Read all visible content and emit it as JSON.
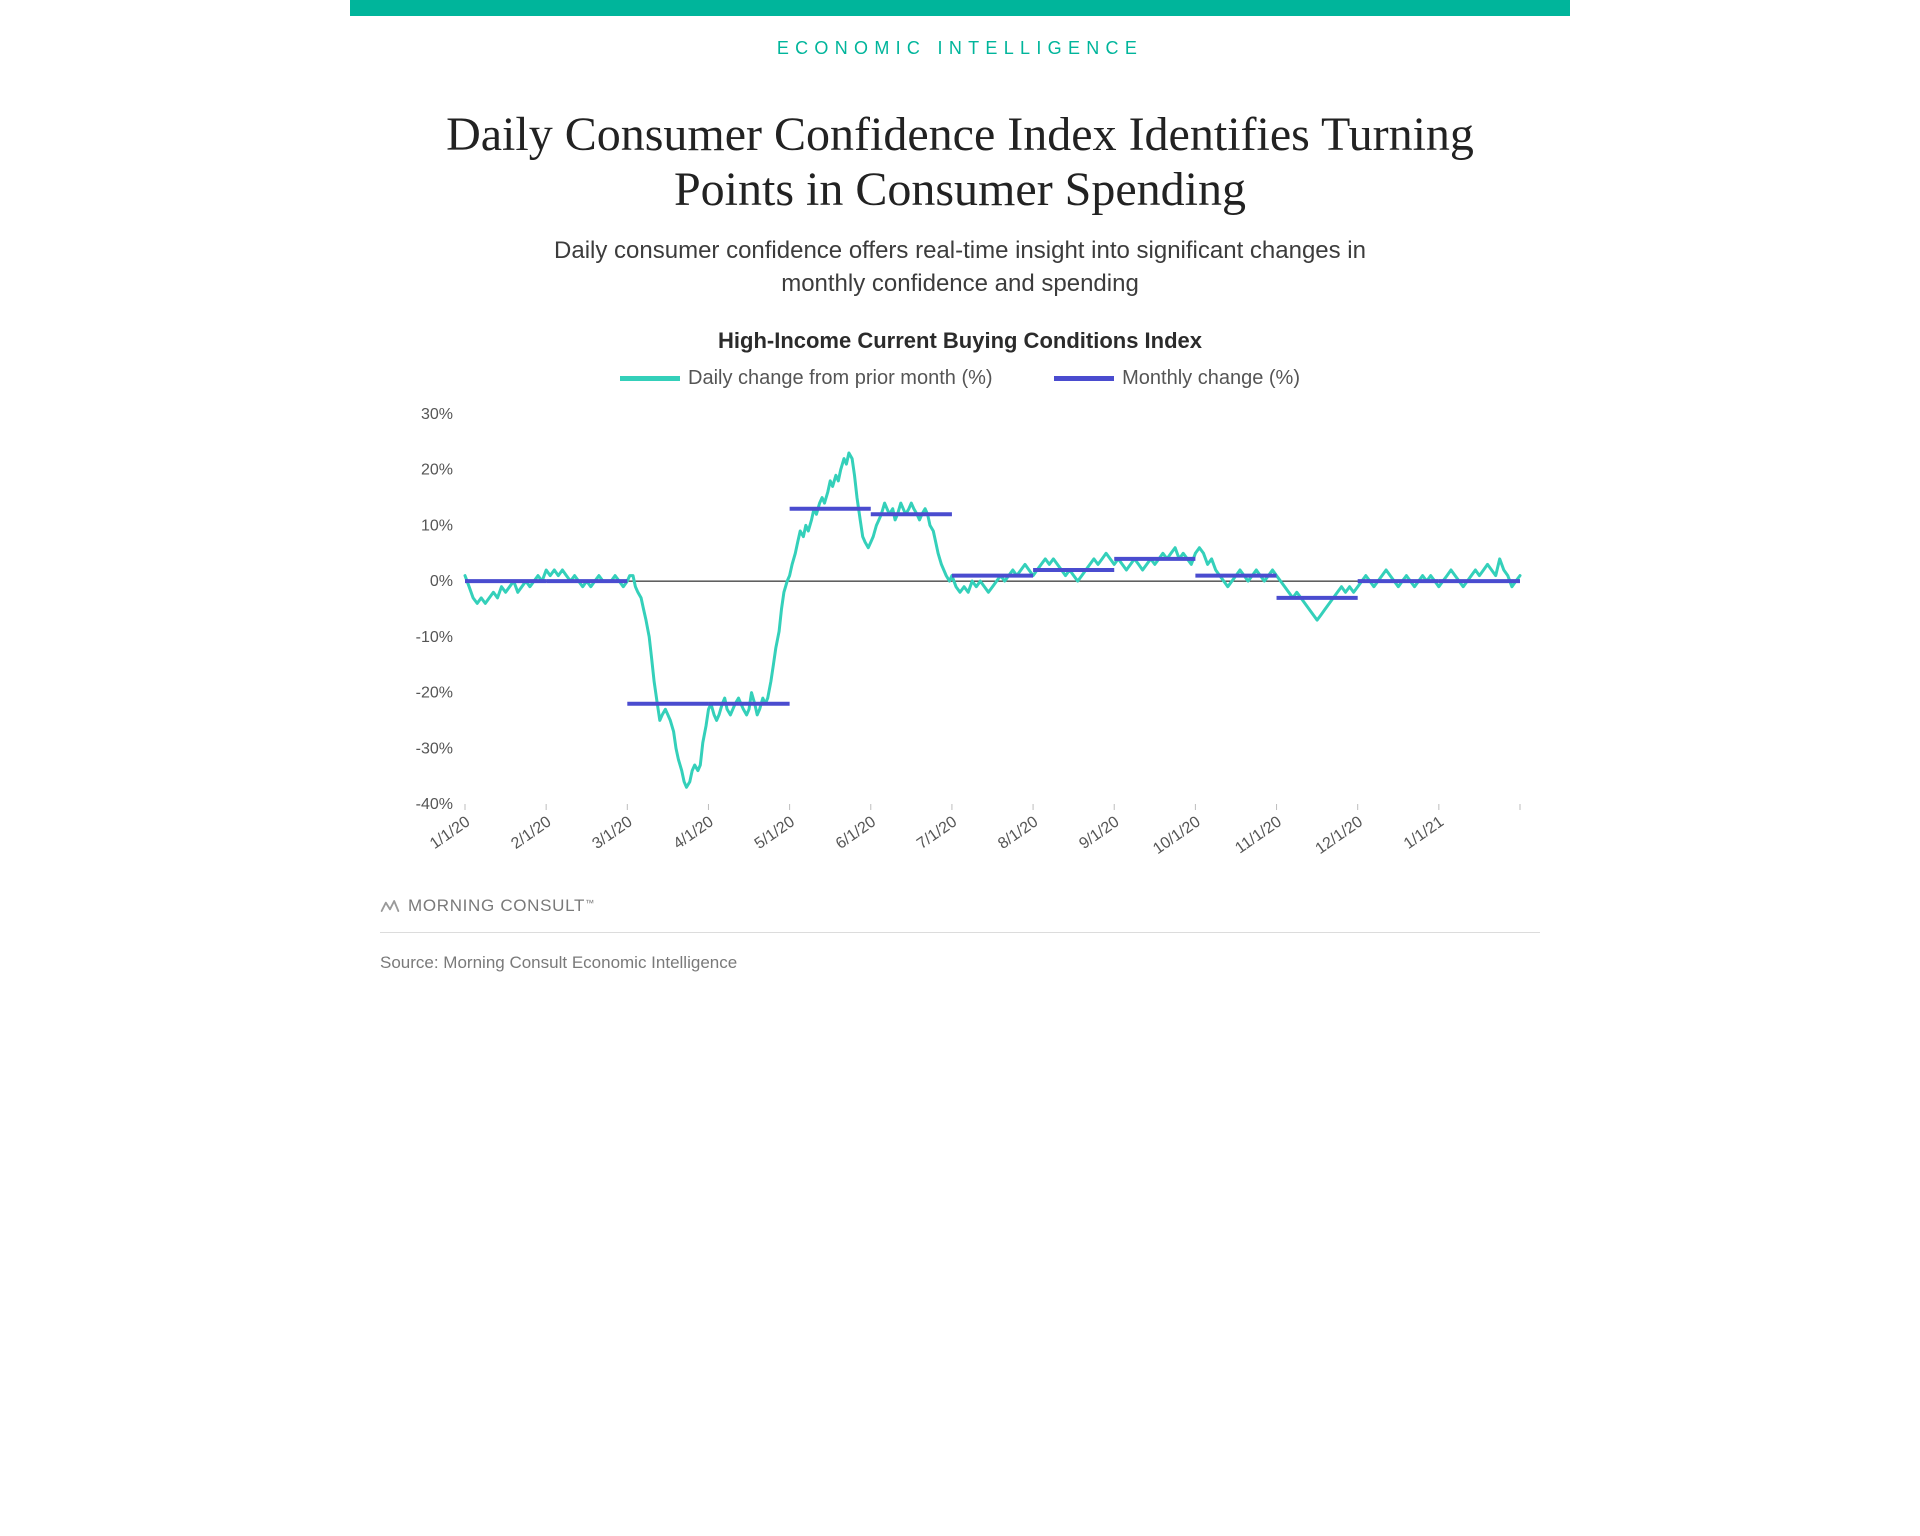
{
  "brand": {
    "accent": "#00b59b",
    "kicker": "ECONOMIC INTELLIGENCE",
    "logo_text": "MORNING CONSULT",
    "logo_color": "#9a9a9a",
    "source": "Source: Morning Consult Economic Intelligence"
  },
  "header": {
    "title": "Daily Consumer Confidence Index Identifies Turning Points in Consumer Spending",
    "subtitle": "Daily consumer confidence offers real-time insight into significant changes in monthly confidence and spending",
    "title_color": "#222222",
    "subtitle_color": "#3c3c3c"
  },
  "chart": {
    "title": "High-Income Current Buying Conditions Index",
    "legend": {
      "daily": {
        "label": "Daily change from prior month (%)",
        "color": "#34d0ba",
        "width": 3
      },
      "monthly": {
        "label": "Monthly change (%)",
        "color": "#4a4ccf",
        "width": 4
      }
    },
    "y": {
      "min": -40,
      "max": 30,
      "step": 10,
      "labels": [
        "30%",
        "20%",
        "10%",
        "0%",
        "-10%",
        "-20%",
        "-30%",
        "-40%"
      ],
      "label_color": "#555555",
      "axis_color": "#000000"
    },
    "x": {
      "labels": [
        "1/1/20",
        "2/1/20",
        "3/1/20",
        "4/1/20",
        "5/1/20",
        "6/1/20",
        "7/1/20",
        "8/1/20",
        "9/1/20",
        "10/1/20",
        "11/1/20",
        "12/1/20",
        "1/1/21"
      ],
      "count": 13,
      "tick_count": 14,
      "label_color": "#555555",
      "tick_color": "#bdbdbd"
    },
    "background": "#ffffff",
    "monthly_segments": [
      {
        "t0": 0.0,
        "t1": 1.0,
        "value": 0
      },
      {
        "t0": 1.0,
        "t1": 2.0,
        "value": 0
      },
      {
        "t0": 2.0,
        "t1": 3.0,
        "value": -22
      },
      {
        "t0": 3.0,
        "t1": 4.0,
        "value": -22
      },
      {
        "t0": 4.0,
        "t1": 5.0,
        "value": 13
      },
      {
        "t0": 5.0,
        "t1": 6.0,
        "value": 12
      },
      {
        "t0": 6.0,
        "t1": 7.0,
        "value": 1
      },
      {
        "t0": 7.0,
        "t1": 8.0,
        "value": 2
      },
      {
        "t0": 8.0,
        "t1": 9.0,
        "value": 4
      },
      {
        "t0": 9.0,
        "t1": 10.0,
        "value": 1
      },
      {
        "t0": 10.0,
        "t1": 11.0,
        "value": -3
      },
      {
        "t0": 11.0,
        "t1": 12.0,
        "value": 0
      },
      {
        "t0": 12.0,
        "t1": 13.0,
        "value": 0
      }
    ],
    "daily_series": [
      [
        0.0,
        1
      ],
      [
        0.05,
        -1
      ],
      [
        0.1,
        -3
      ],
      [
        0.15,
        -4
      ],
      [
        0.2,
        -3
      ],
      [
        0.25,
        -4
      ],
      [
        0.3,
        -3
      ],
      [
        0.35,
        -2
      ],
      [
        0.4,
        -3
      ],
      [
        0.45,
        -1
      ],
      [
        0.5,
        -2
      ],
      [
        0.55,
        -1
      ],
      [
        0.6,
        0
      ],
      [
        0.65,
        -2
      ],
      [
        0.7,
        -1
      ],
      [
        0.75,
        0
      ],
      [
        0.8,
        -1
      ],
      [
        0.85,
        0
      ],
      [
        0.9,
        1
      ],
      [
        0.95,
        0
      ],
      [
        1.0,
        2
      ],
      [
        1.05,
        1
      ],
      [
        1.1,
        2
      ],
      [
        1.15,
        1
      ],
      [
        1.2,
        2
      ],
      [
        1.25,
        1
      ],
      [
        1.3,
        0
      ],
      [
        1.35,
        1
      ],
      [
        1.4,
        0
      ],
      [
        1.45,
        -1
      ],
      [
        1.5,
        0
      ],
      [
        1.55,
        -1
      ],
      [
        1.6,
        0
      ],
      [
        1.65,
        1
      ],
      [
        1.7,
        0
      ],
      [
        1.75,
        0
      ],
      [
        1.8,
        0
      ],
      [
        1.85,
        1
      ],
      [
        1.9,
        0
      ],
      [
        1.95,
        -1
      ],
      [
        2.0,
        0
      ],
      [
        2.03,
        1
      ],
      [
        2.07,
        1
      ],
      [
        2.1,
        -1
      ],
      [
        2.13,
        -2
      ],
      [
        2.17,
        -3
      ],
      [
        2.2,
        -5
      ],
      [
        2.23,
        -7
      ],
      [
        2.27,
        -10
      ],
      [
        2.3,
        -14
      ],
      [
        2.33,
        -18
      ],
      [
        2.37,
        -22
      ],
      [
        2.4,
        -25
      ],
      [
        2.43,
        -24
      ],
      [
        2.47,
        -23
      ],
      [
        2.5,
        -24
      ],
      [
        2.53,
        -25
      ],
      [
        2.57,
        -27
      ],
      [
        2.6,
        -30
      ],
      [
        2.63,
        -32
      ],
      [
        2.67,
        -34
      ],
      [
        2.7,
        -36
      ],
      [
        2.73,
        -37
      ],
      [
        2.77,
        -36
      ],
      [
        2.8,
        -34
      ],
      [
        2.83,
        -33
      ],
      [
        2.87,
        -34
      ],
      [
        2.9,
        -33
      ],
      [
        2.93,
        -29
      ],
      [
        2.97,
        -26
      ],
      [
        3.0,
        -23
      ],
      [
        3.03,
        -22
      ],
      [
        3.07,
        -24
      ],
      [
        3.1,
        -25
      ],
      [
        3.13,
        -24
      ],
      [
        3.17,
        -22
      ],
      [
        3.2,
        -21
      ],
      [
        3.23,
        -23
      ],
      [
        3.27,
        -24
      ],
      [
        3.3,
        -23
      ],
      [
        3.33,
        -22
      ],
      [
        3.37,
        -21
      ],
      [
        3.4,
        -22
      ],
      [
        3.43,
        -23
      ],
      [
        3.47,
        -24
      ],
      [
        3.5,
        -23
      ],
      [
        3.53,
        -20
      ],
      [
        3.57,
        -22
      ],
      [
        3.6,
        -24
      ],
      [
        3.63,
        -23
      ],
      [
        3.67,
        -21
      ],
      [
        3.7,
        -22
      ],
      [
        3.73,
        -21
      ],
      [
        3.77,
        -18
      ],
      [
        3.8,
        -15
      ],
      [
        3.83,
        -12
      ],
      [
        3.87,
        -9
      ],
      [
        3.9,
        -5
      ],
      [
        3.93,
        -2
      ],
      [
        3.97,
        0
      ],
      [
        4.0,
        1
      ],
      [
        4.03,
        3
      ],
      [
        4.07,
        5
      ],
      [
        4.1,
        7
      ],
      [
        4.13,
        9
      ],
      [
        4.17,
        8
      ],
      [
        4.2,
        10
      ],
      [
        4.23,
        9
      ],
      [
        4.27,
        11
      ],
      [
        4.3,
        13
      ],
      [
        4.33,
        12
      ],
      [
        4.37,
        14
      ],
      [
        4.4,
        15
      ],
      [
        4.43,
        14
      ],
      [
        4.47,
        16
      ],
      [
        4.5,
        18
      ],
      [
        4.53,
        17
      ],
      [
        4.57,
        19
      ],
      [
        4.6,
        18
      ],
      [
        4.63,
        20
      ],
      [
        4.67,
        22
      ],
      [
        4.7,
        21
      ],
      [
        4.73,
        23
      ],
      [
        4.77,
        22
      ],
      [
        4.8,
        19
      ],
      [
        4.83,
        15
      ],
      [
        4.87,
        11
      ],
      [
        4.9,
        8
      ],
      [
        4.93,
        7
      ],
      [
        4.97,
        6
      ],
      [
        5.0,
        7
      ],
      [
        5.03,
        8
      ],
      [
        5.07,
        10
      ],
      [
        5.1,
        11
      ],
      [
        5.13,
        12
      ],
      [
        5.17,
        14
      ],
      [
        5.2,
        13
      ],
      [
        5.23,
        12
      ],
      [
        5.27,
        13
      ],
      [
        5.3,
        11
      ],
      [
        5.33,
        12
      ],
      [
        5.37,
        14
      ],
      [
        5.4,
        13
      ],
      [
        5.43,
        12
      ],
      [
        5.47,
        13
      ],
      [
        5.5,
        14
      ],
      [
        5.53,
        13
      ],
      [
        5.57,
        12
      ],
      [
        5.6,
        11
      ],
      [
        5.63,
        12
      ],
      [
        5.67,
        13
      ],
      [
        5.7,
        12
      ],
      [
        5.73,
        10
      ],
      [
        5.77,
        9
      ],
      [
        5.8,
        7
      ],
      [
        5.83,
        5
      ],
      [
        5.87,
        3
      ],
      [
        5.9,
        2
      ],
      [
        5.93,
        1
      ],
      [
        5.97,
        0
      ],
      [
        6.0,
        1
      ],
      [
        6.05,
        -1
      ],
      [
        6.1,
        -2
      ],
      [
        6.15,
        -1
      ],
      [
        6.2,
        -2
      ],
      [
        6.25,
        0
      ],
      [
        6.3,
        -1
      ],
      [
        6.35,
        0
      ],
      [
        6.4,
        -1
      ],
      [
        6.45,
        -2
      ],
      [
        6.5,
        -1
      ],
      [
        6.55,
        0
      ],
      [
        6.6,
        1
      ],
      [
        6.65,
        0
      ],
      [
        6.7,
        1
      ],
      [
        6.75,
        2
      ],
      [
        6.8,
        1
      ],
      [
        6.85,
        2
      ],
      [
        6.9,
        3
      ],
      [
        6.95,
        2
      ],
      [
        7.0,
        1
      ],
      [
        7.05,
        2
      ],
      [
        7.1,
        3
      ],
      [
        7.15,
        4
      ],
      [
        7.2,
        3
      ],
      [
        7.25,
        4
      ],
      [
        7.3,
        3
      ],
      [
        7.35,
        2
      ],
      [
        7.4,
        1
      ],
      [
        7.45,
        2
      ],
      [
        7.5,
        1
      ],
      [
        7.55,
        0
      ],
      [
        7.6,
        1
      ],
      [
        7.65,
        2
      ],
      [
        7.7,
        3
      ],
      [
        7.75,
        4
      ],
      [
        7.8,
        3
      ],
      [
        7.85,
        4
      ],
      [
        7.9,
        5
      ],
      [
        7.95,
        4
      ],
      [
        8.0,
        3
      ],
      [
        8.05,
        4
      ],
      [
        8.1,
        3
      ],
      [
        8.15,
        2
      ],
      [
        8.2,
        3
      ],
      [
        8.25,
        4
      ],
      [
        8.3,
        3
      ],
      [
        8.35,
        2
      ],
      [
        8.4,
        3
      ],
      [
        8.45,
        4
      ],
      [
        8.5,
        3
      ],
      [
        8.55,
        4
      ],
      [
        8.6,
        5
      ],
      [
        8.65,
        4
      ],
      [
        8.7,
        5
      ],
      [
        8.75,
        6
      ],
      [
        8.8,
        4
      ],
      [
        8.85,
        5
      ],
      [
        8.9,
        4
      ],
      [
        8.95,
        3
      ],
      [
        9.0,
        5
      ],
      [
        9.05,
        6
      ],
      [
        9.1,
        5
      ],
      [
        9.15,
        3
      ],
      [
        9.2,
        4
      ],
      [
        9.25,
        2
      ],
      [
        9.3,
        1
      ],
      [
        9.35,
        0
      ],
      [
        9.4,
        -1
      ],
      [
        9.45,
        0
      ],
      [
        9.5,
        1
      ],
      [
        9.55,
        2
      ],
      [
        9.6,
        1
      ],
      [
        9.65,
        0
      ],
      [
        9.7,
        1
      ],
      [
        9.75,
        2
      ],
      [
        9.8,
        1
      ],
      [
        9.85,
        0
      ],
      [
        9.9,
        1
      ],
      [
        9.95,
        2
      ],
      [
        10.0,
        1
      ],
      [
        10.05,
        0
      ],
      [
        10.1,
        -1
      ],
      [
        10.15,
        -2
      ],
      [
        10.2,
        -3
      ],
      [
        10.25,
        -2
      ],
      [
        10.3,
        -3
      ],
      [
        10.35,
        -4
      ],
      [
        10.4,
        -5
      ],
      [
        10.45,
        -6
      ],
      [
        10.5,
        -7
      ],
      [
        10.55,
        -6
      ],
      [
        10.6,
        -5
      ],
      [
        10.65,
        -4
      ],
      [
        10.7,
        -3
      ],
      [
        10.75,
        -2
      ],
      [
        10.8,
        -1
      ],
      [
        10.85,
        -2
      ],
      [
        10.9,
        -1
      ],
      [
        10.95,
        -2
      ],
      [
        11.0,
        -1
      ],
      [
        11.05,
        0
      ],
      [
        11.1,
        1
      ],
      [
        11.15,
        0
      ],
      [
        11.2,
        -1
      ],
      [
        11.25,
        0
      ],
      [
        11.3,
        1
      ],
      [
        11.35,
        2
      ],
      [
        11.4,
        1
      ],
      [
        11.45,
        0
      ],
      [
        11.5,
        -1
      ],
      [
        11.55,
        0
      ],
      [
        11.6,
        1
      ],
      [
        11.65,
        0
      ],
      [
        11.7,
        -1
      ],
      [
        11.75,
        0
      ],
      [
        11.8,
        1
      ],
      [
        11.85,
        0
      ],
      [
        11.9,
        1
      ],
      [
        11.95,
        0
      ],
      [
        12.0,
        -1
      ],
      [
        12.05,
        0
      ],
      [
        12.1,
        1
      ],
      [
        12.15,
        2
      ],
      [
        12.2,
        1
      ],
      [
        12.25,
        0
      ],
      [
        12.3,
        -1
      ],
      [
        12.35,
        0
      ],
      [
        12.4,
        1
      ],
      [
        12.45,
        2
      ],
      [
        12.5,
        1
      ],
      [
        12.55,
        2
      ],
      [
        12.6,
        3
      ],
      [
        12.65,
        2
      ],
      [
        12.7,
        1
      ],
      [
        12.75,
        4
      ],
      [
        12.8,
        2
      ],
      [
        12.85,
        1
      ],
      [
        12.9,
        -1
      ],
      [
        12.95,
        0
      ],
      [
        13.0,
        1
      ]
    ]
  }
}
